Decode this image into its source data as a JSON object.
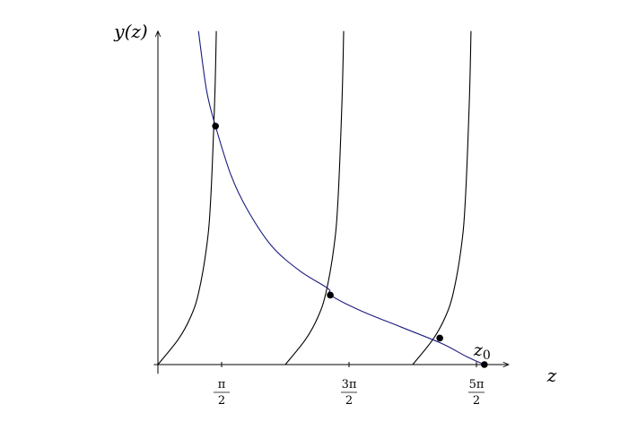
{
  "chart_data": {
    "type": "line",
    "title": "",
    "xlabel": "z",
    "ylabel": "y(z)",
    "x_range": [
      -0.1,
      8.65
    ],
    "y_range": [
      -0.2,
      7.3
    ],
    "grid": false,
    "legend": "none",
    "x_ticks": [
      {
        "value": 1.5708,
        "num": "π",
        "den": "2"
      },
      {
        "value": 4.7124,
        "num": "3π",
        "den": "2"
      },
      {
        "value": 7.854,
        "num": "5π",
        "den": "2"
      }
    ],
    "series": [
      {
        "kind": "tan_branch",
        "x_start": 0,
        "x_asymptote": 1.5708,
        "points": [
          [
            0,
            0
          ],
          [
            0.5,
            0.55
          ],
          [
            0.8,
            1.03
          ],
          [
            1.0,
            1.56
          ],
          [
            1.2,
            2.57
          ],
          [
            1.3,
            3.6
          ],
          [
            1.4,
            5.8
          ],
          [
            1.44,
            7.3
          ]
        ],
        "color": "#000000"
      },
      {
        "kind": "tan_branch",
        "x_start": 3.1416,
        "x_asymptote": 4.7124,
        "points": [
          [
            3.1416,
            0
          ],
          [
            3.64,
            0.55
          ],
          [
            3.94,
            1.03
          ],
          [
            4.14,
            1.56
          ],
          [
            4.34,
            2.57
          ],
          [
            4.44,
            3.6
          ],
          [
            4.54,
            5.8
          ],
          [
            4.58,
            7.3
          ]
        ],
        "color": "#000000"
      },
      {
        "kind": "tan_branch",
        "x_start": 6.2832,
        "x_asymptote": 7.854,
        "points": [
          [
            6.2832,
            0
          ],
          [
            6.78,
            0.55
          ],
          [
            7.08,
            1.03
          ],
          [
            7.28,
            1.56
          ],
          [
            7.48,
            2.57
          ],
          [
            7.58,
            3.6
          ],
          [
            7.68,
            5.8
          ],
          [
            7.72,
            7.3
          ]
        ],
        "color": "#000000"
      },
      {
        "kind": "decreasing_curve",
        "points": [
          [
            1.0,
            7.3
          ],
          [
            1.2,
            6.0
          ],
          [
            1.42,
            5.22
          ],
          [
            1.8,
            4.15
          ],
          [
            2.2,
            3.4
          ],
          [
            2.8,
            2.6
          ],
          [
            3.5,
            2.05
          ],
          [
            4.2,
            1.66
          ],
          [
            4.25,
            1.52
          ],
          [
            5.0,
            1.18
          ],
          [
            6.0,
            0.82
          ],
          [
            7.0,
            0.46
          ],
          [
            7.6,
            0.18
          ],
          [
            8.05,
            0.0
          ]
        ],
        "color": "#1a1a80"
      }
    ],
    "markers": [
      {
        "x": 1.42,
        "y": 5.22
      },
      {
        "x": 4.25,
        "y": 1.52
      },
      {
        "x": 6.95,
        "y": 0.58
      },
      {
        "x": 8.05,
        "y": 0.0
      }
    ],
    "annotations": [
      {
        "text": "z0",
        "base": "z",
        "sub": "0",
        "x": 8.05,
        "y": 0.0
      }
    ]
  }
}
